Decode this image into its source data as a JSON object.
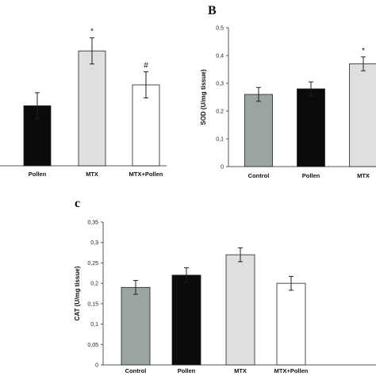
{
  "colors": {
    "Control": "#9aa5a3",
    "Pollen": "#0b0b0b",
    "MTX": "#dde0df",
    "MTX+Pollen": "#ffffff",
    "axis": "#555555",
    "bar_stroke": "#222222"
  },
  "chart_data": [
    {
      "type": "bar",
      "panel": "A",
      "panel_label": "",
      "categories": [
        "Pollen",
        "MTX",
        "MTX+Pollen"
      ],
      "values": [
        0.23,
        0.44,
        0.31
      ],
      "errors": [
        0.05,
        0.05,
        0.05
      ],
      "significance": [
        "",
        "*",
        "#"
      ],
      "xlabel": "",
      "ylabel": "",
      "ylim": [
        0,
        0.55
      ],
      "yticks": [],
      "cropped": true
    },
    {
      "type": "bar",
      "panel": "B",
      "panel_label": "B",
      "categories": [
        "Control",
        "Pollen",
        "MTX"
      ],
      "values": [
        0.26,
        0.28,
        0.37
      ],
      "errors": [
        0.025,
        0.025,
        0.025
      ],
      "significance": [
        "",
        "",
        "*"
      ],
      "xlabel": "",
      "ylabel": "SOD (U/mg tissue)",
      "ylim": [
        0,
        0.5
      ],
      "yticks": [
        "0",
        "0,1",
        "0,2",
        "0,3",
        "0,4",
        "0,5"
      ],
      "cropped": true
    },
    {
      "type": "bar",
      "panel": "C",
      "panel_label": "c",
      "categories": [
        "Control",
        "Pollen",
        "MTX",
        "MTX+Pollen"
      ],
      "values": [
        0.19,
        0.22,
        0.27,
        0.2
      ],
      "errors": [
        0.017,
        0.018,
        0.017,
        0.017
      ],
      "significance": [
        "",
        "",
        "",
        ""
      ],
      "xlabel": "",
      "ylabel": "CAT (U/mg tissue)",
      "ylim": [
        0,
        0.35
      ],
      "yticks": [
        "0",
        "0,05",
        "0,1",
        "0,15",
        "0,2",
        "0,25",
        "0,3",
        "0,35"
      ],
      "cropped": false
    }
  ]
}
